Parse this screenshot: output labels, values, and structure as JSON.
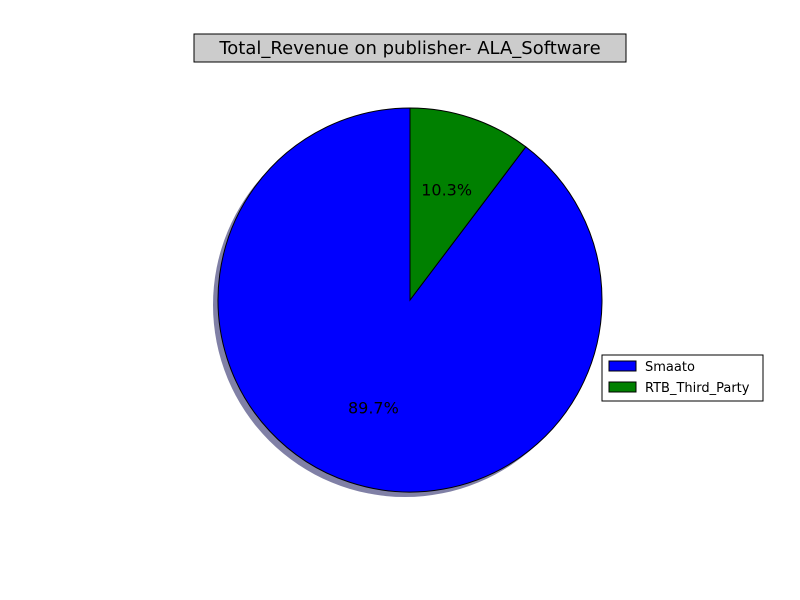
{
  "chart_data": {
    "type": "pie",
    "title": "Total_Revenue on publisher- ALA_Software",
    "slices": [
      {
        "label": "Smaato",
        "value": 89.7,
        "pct_label": "89.7%",
        "color": "#0000ff"
      },
      {
        "label": "RTB_Third_Party",
        "value": 10.3,
        "pct_label": "10.3%",
        "color": "#008000"
      }
    ],
    "start_angle_deg": 90,
    "direction": "counterclockwise",
    "shadow": true,
    "legend_position": "right"
  }
}
